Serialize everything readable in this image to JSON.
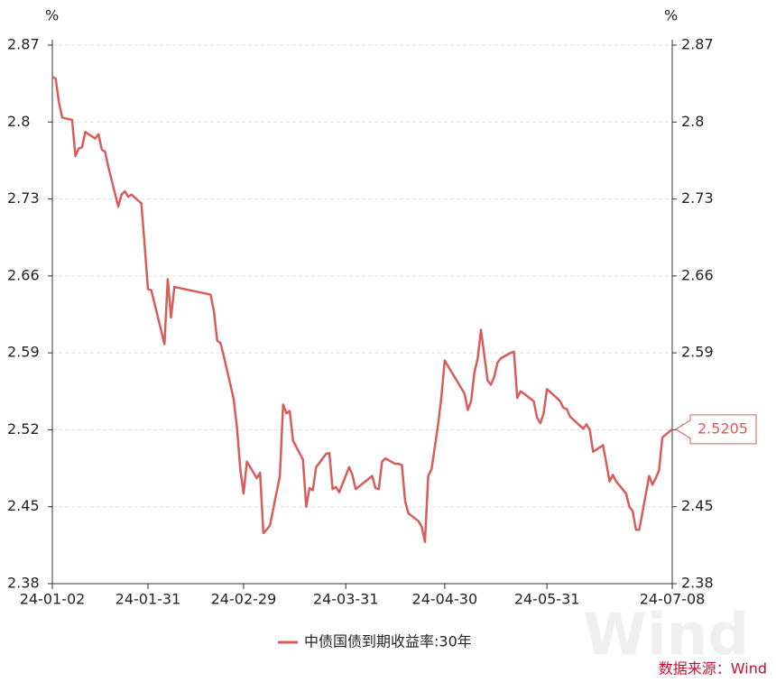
{
  "chart_data": {
    "type": "line",
    "y_unit": "%",
    "y2_unit": "%",
    "x": [
      "24-01-02",
      "24-01-03",
      "24-01-04",
      "24-01-05",
      "24-01-08",
      "24-01-09",
      "24-01-10",
      "24-01-11",
      "24-01-12",
      "24-01-15",
      "24-01-16",
      "24-01-17",
      "24-01-18",
      "24-01-19",
      "24-01-22",
      "24-01-23",
      "24-01-24",
      "24-01-25",
      "24-01-26",
      "24-01-29",
      "24-01-30",
      "24-01-31",
      "24-02-01",
      "24-02-02",
      "24-02-05",
      "24-02-06",
      "24-02-07",
      "24-02-08",
      "24-02-19",
      "24-02-20",
      "24-02-21",
      "24-02-22",
      "24-02-23",
      "24-02-26",
      "24-02-27",
      "24-02-28",
      "24-02-29",
      "24-03-01",
      "24-03-04",
      "24-03-05",
      "24-03-06",
      "24-03-07",
      "24-03-08",
      "24-03-11",
      "24-03-12",
      "24-03-13",
      "24-03-14",
      "24-03-15",
      "24-03-18",
      "24-03-19",
      "24-03-20",
      "24-03-21",
      "24-03-22",
      "24-03-25",
      "24-03-26",
      "24-03-27",
      "24-03-28",
      "24-03-29",
      "24-04-01",
      "24-04-02",
      "24-04-03",
      "24-04-08",
      "24-04-09",
      "24-04-10",
      "24-04-11",
      "24-04-12",
      "24-04-15",
      "24-04-16",
      "24-04-17",
      "24-04-18",
      "24-04-19",
      "24-04-22",
      "24-04-23",
      "24-04-24",
      "24-04-25",
      "24-04-26",
      "24-04-28",
      "24-04-29",
      "24-04-30",
      "24-05-06",
      "24-05-07",
      "24-05-08",
      "24-05-09",
      "24-05-10",
      "24-05-11",
      "24-05-13",
      "24-05-14",
      "24-05-15",
      "24-05-16",
      "24-05-17",
      "24-05-20",
      "24-05-21",
      "24-05-22",
      "24-05-23",
      "24-05-24",
      "24-05-27",
      "24-05-28",
      "24-05-29",
      "24-05-30",
      "24-05-31",
      "24-06-03",
      "24-06-04",
      "24-06-05",
      "24-06-06",
      "24-06-07",
      "24-06-11",
      "24-06-12",
      "24-06-13",
      "24-06-14",
      "24-06-17",
      "24-06-18",
      "24-06-19",
      "24-06-20",
      "24-06-21",
      "24-06-24",
      "24-06-25",
      "24-06-26",
      "24-06-27",
      "24-06-28",
      "24-07-01",
      "24-07-02",
      "24-07-03",
      "24-07-04",
      "24-07-05",
      "24-07-08"
    ],
    "series": [
      {
        "name": "中债国债到期收益率:30年",
        "color": "#d95b5b",
        "values": [
          2.841,
          2.8396,
          2.818,
          2.804,
          2.802,
          2.769,
          2.776,
          2.777,
          2.791,
          2.785,
          2.789,
          2.775,
          2.773,
          2.759,
          2.723,
          2.734,
          2.737,
          2.732,
          2.734,
          2.726,
          2.688,
          2.648,
          2.647,
          2.635,
          2.598,
          2.657,
          2.622,
          2.65,
          2.643,
          2.628,
          2.601,
          2.599,
          2.587,
          2.548,
          2.522,
          2.484,
          2.462,
          2.491,
          2.476,
          2.481,
          2.426,
          2.429,
          2.433,
          2.478,
          2.543,
          2.535,
          2.537,
          2.51,
          2.493,
          2.45,
          2.467,
          2.465,
          2.486,
          2.498,
          2.499,
          2.466,
          2.468,
          2.463,
          2.486,
          2.479,
          2.466,
          2.478,
          2.467,
          2.466,
          2.491,
          2.494,
          2.489,
          2.489,
          2.488,
          2.455,
          2.444,
          2.437,
          2.432,
          2.418,
          2.478,
          2.484,
          2.525,
          2.55,
          2.583,
          2.553,
          2.538,
          2.546,
          2.572,
          2.585,
          2.611,
          2.565,
          2.561,
          2.568,
          2.581,
          2.585,
          2.59,
          2.591,
          2.549,
          2.555,
          2.553,
          2.546,
          2.531,
          2.526,
          2.535,
          2.557,
          2.549,
          2.546,
          2.54,
          2.539,
          2.532,
          2.521,
          2.525,
          2.52,
          2.5,
          2.506,
          2.49,
          2.473,
          2.479,
          2.473,
          2.462,
          2.45,
          2.446,
          2.429,
          2.429,
          2.478,
          2.47,
          2.476,
          2.483,
          2.513,
          2.5205
        ]
      }
    ],
    "xlim": [
      "24-01-02",
      "24-07-08"
    ],
    "xticks": [
      "24-01-02",
      "24-01-31",
      "24-02-29",
      "24-03-31",
      "24-04-30",
      "24-05-31",
      "24-07-08"
    ],
    "ylim": [
      2.38,
      2.87
    ],
    "yticks": [
      2.38,
      2.45,
      2.52,
      2.59,
      2.66,
      2.73,
      2.8,
      2.87
    ],
    "y2lim": [
      2.38,
      2.87
    ],
    "y2ticks": [
      2.38,
      2.45,
      2.52,
      2.59,
      2.66,
      2.73,
      2.8,
      2.87
    ],
    "grid": true,
    "legend": "bottom",
    "source": "数据来源：Wind",
    "watermark": "Wind"
  }
}
